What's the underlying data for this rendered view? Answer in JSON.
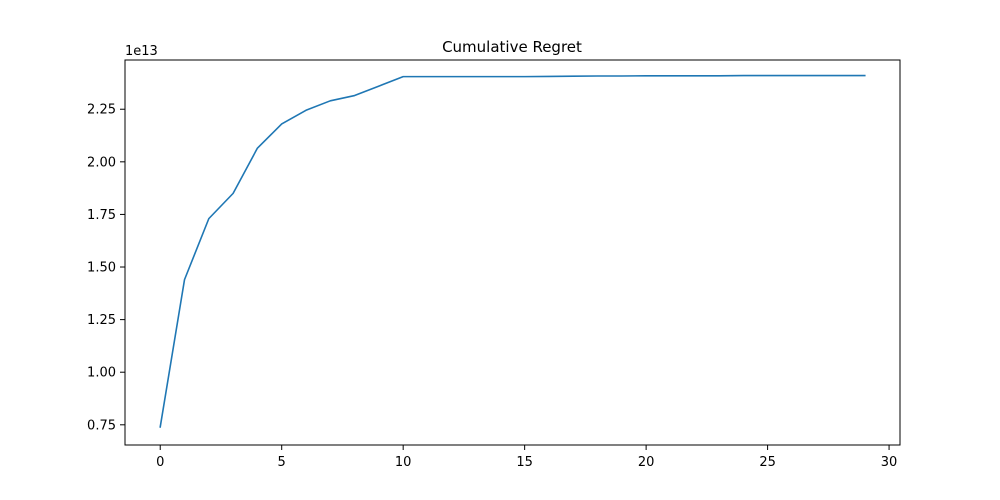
{
  "chart_data": {
    "type": "line",
    "title": "Cumulative Regret",
    "xlabel": "",
    "ylabel": "",
    "y_offset_label": "1e13",
    "xlim": [
      -1.45,
      30.45
    ],
    "ylim": [
      0.654,
      2.484
    ],
    "x_ticks": [
      0,
      5,
      10,
      15,
      20,
      25,
      30
    ],
    "x_tick_labels": [
      "0",
      "5",
      "10",
      "15",
      "20",
      "25",
      "30"
    ],
    "y_ticks": [
      0.75,
      1.0,
      1.25,
      1.5,
      1.75,
      2.0,
      2.25
    ],
    "y_tick_labels": [
      "0.75",
      "1.00",
      "1.25",
      "1.50",
      "1.75",
      "2.00",
      "2.25"
    ],
    "grid": false,
    "series": [
      {
        "color": "#1f77b4",
        "x": [
          0,
          1,
          2,
          3,
          4,
          5,
          6,
          7,
          8,
          9,
          10,
          11,
          12,
          13,
          14,
          15,
          16,
          17,
          18,
          19,
          20,
          21,
          22,
          23,
          24,
          25,
          26,
          27,
          28,
          29
        ],
        "y": [
          0.74,
          1.44,
          1.73,
          1.85,
          2.065,
          2.18,
          2.245,
          2.29,
          2.315,
          2.36,
          2.405,
          2.405,
          2.405,
          2.405,
          2.405,
          2.405,
          2.406,
          2.407,
          2.408,
          2.408,
          2.409,
          2.409,
          2.409,
          2.409,
          2.41,
          2.41,
          2.41,
          2.41,
          2.41,
          2.41
        ]
      }
    ]
  }
}
